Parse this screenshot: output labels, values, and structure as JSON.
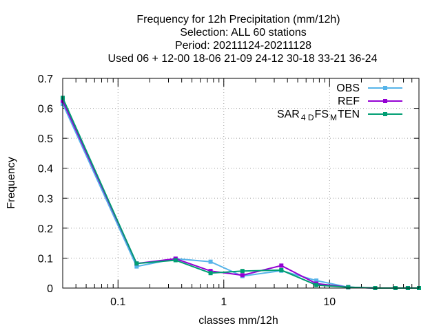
{
  "chart_data": {
    "type": "line",
    "title_lines": [
      "Frequency  for 12h Precipitation (mm/12h)",
      "Selection: ALL     60 stations",
      "Period: 20211124-20211128",
      "Used  06 + 12-00 18-06 21-09 24-12 30-18 33-21 36-24"
    ],
    "xlabel": "classes mm/12h",
    "ylabel": "Frequency",
    "x_scale": "log",
    "xlim": [
      0.03,
      70
    ],
    "ylim": [
      0,
      0.7
    ],
    "y_ticks": [
      "0",
      "0.1",
      "0.2",
      "0.3",
      "0.4",
      "0.5",
      "0.6",
      "0.7"
    ],
    "y_tick_values": [
      0,
      0.1,
      0.2,
      0.3,
      0.4,
      0.5,
      0.6,
      0.7
    ],
    "x_tick_labels": [
      "0.1",
      "1",
      "10"
    ],
    "x_tick_values": [
      0.1,
      1,
      10
    ],
    "grid": true,
    "legend_position": "top-right",
    "x": [
      0.03,
      0.15,
      0.35,
      0.75,
      1.5,
      3.5,
      7.5,
      15,
      27,
      42,
      55,
      70
    ],
    "series": [
      {
        "name": "OBS",
        "color": "#56b4e9",
        "marker": "filled-square",
        "values": [
          0.615,
          0.072,
          0.098,
          0.088,
          0.04,
          0.058,
          0.025,
          0.003,
          0.0,
          0.0,
          0.0,
          0.0
        ]
      },
      {
        "name": "REF",
        "color": "#9400d3",
        "marker": "filled-square",
        "values": [
          0.625,
          0.082,
          0.098,
          0.057,
          0.043,
          0.075,
          0.015,
          0.003,
          0.0,
          0.0,
          0.0,
          0.0
        ]
      },
      {
        "name": "SAR_4D FS_M TEN",
        "legend": {
          "base": "SAR",
          "sub1": "4 D",
          "mid": "FS",
          "sub2": "M",
          "tail": "TEN"
        },
        "color": "#009e73",
        "marker": "filled-square",
        "values": [
          0.635,
          0.082,
          0.093,
          0.05,
          0.057,
          0.06,
          0.01,
          0.003,
          0.0,
          0.0,
          0.0,
          0.0
        ]
      }
    ]
  }
}
